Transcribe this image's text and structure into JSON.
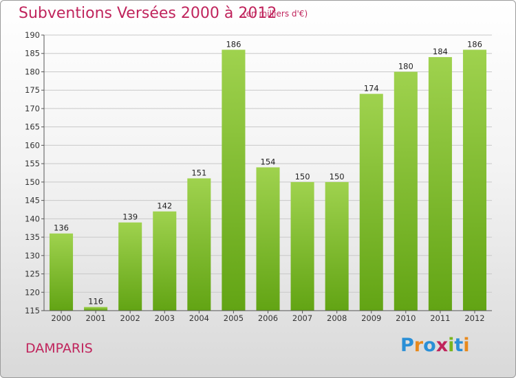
{
  "title": "Subventions Versées 2000 à 2012",
  "subtitle": "(en milliers d'€)",
  "commune": "DAMPARIS",
  "logo": {
    "letters": [
      "P",
      "r",
      "o",
      "x",
      "i",
      "t",
      "i"
    ],
    "colors": [
      "#2a8fd6",
      "#e8891c",
      "#2a8fd6",
      "#c0245c",
      "#7ab51d",
      "#2a8fd6",
      "#e8891c"
    ]
  },
  "colors": {
    "bar_top": "#9fd24e",
    "bar_bottom": "#62a414",
    "title": "#c0245c"
  },
  "chart_data": {
    "type": "bar",
    "title": "Subventions Versées 2000 à 2012",
    "subtitle": "(en milliers d'€)",
    "categories": [
      "2000",
      "2001",
      "2002",
      "2003",
      "2004",
      "2005",
      "2006",
      "2007",
      "2008",
      "2009",
      "2010",
      "2011",
      "2012"
    ],
    "values": [
      136,
      116,
      139,
      142,
      151,
      186,
      154,
      150,
      150,
      174,
      180,
      184,
      186
    ],
    "data_labels": [
      "136",
      "116",
      "139",
      "142",
      "151",
      "186",
      "154",
      "150",
      "150",
      "174",
      "180",
      "184",
      "186"
    ],
    "yticks": [
      "115",
      "120",
      "125",
      "130",
      "135",
      "140",
      "145",
      "150",
      "155",
      "160",
      "165",
      "170",
      "175",
      "180",
      "185",
      "190"
    ],
    "ylim": [
      115,
      190
    ],
    "grid": true,
    "legend": "none"
  }
}
